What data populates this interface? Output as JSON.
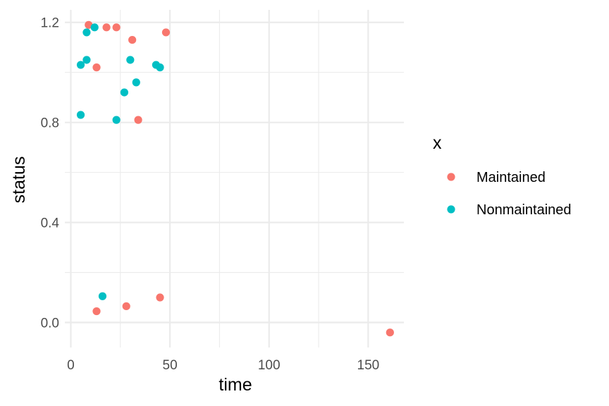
{
  "chart_data": {
    "type": "scatter",
    "title": "",
    "xlabel": "time",
    "ylabel": "status",
    "xlim": [
      -3,
      168
    ],
    "ylim": [
      -0.1,
      1.25
    ],
    "x_ticks": [
      0,
      50,
      100,
      150
    ],
    "x_tick_labels": [
      "0",
      "50",
      "100",
      "150"
    ],
    "x_minor_ticks": [
      25,
      75,
      125
    ],
    "y_ticks": [
      0.0,
      0.4,
      0.8,
      1.2
    ],
    "y_tick_labels": [
      "0.0",
      "0.4",
      "0.8",
      "1.2"
    ],
    "y_minor_ticks": [
      0.2,
      0.6,
      1.0
    ],
    "grid": true,
    "legend": {
      "title": "x",
      "position": "right"
    },
    "series": [
      {
        "name": "Maintained",
        "color": "#F8766D",
        "points": [
          {
            "x": 9,
            "y": 1.19
          },
          {
            "x": 18,
            "y": 1.18
          },
          {
            "x": 23,
            "y": 1.18
          },
          {
            "x": 48,
            "y": 1.16
          },
          {
            "x": 31,
            "y": 1.13
          },
          {
            "x": 13,
            "y": 1.02
          },
          {
            "x": 34,
            "y": 0.81
          },
          {
            "x": 45,
            "y": 0.1
          },
          {
            "x": 28,
            "y": 0.065
          },
          {
            "x": 13,
            "y": 0.045
          },
          {
            "x": 161,
            "y": -0.04
          }
        ]
      },
      {
        "name": "Nonmaintained",
        "color": "#00BFC4",
        "points": [
          {
            "x": 12,
            "y": 1.18
          },
          {
            "x": 8,
            "y": 1.16
          },
          {
            "x": 8,
            "y": 1.05
          },
          {
            "x": 5,
            "y": 1.03
          },
          {
            "x": 30,
            "y": 1.05
          },
          {
            "x": 43,
            "y": 1.03
          },
          {
            "x": 45,
            "y": 1.02
          },
          {
            "x": 33,
            "y": 0.96
          },
          {
            "x": 27,
            "y": 0.92
          },
          {
            "x": 5,
            "y": 0.83
          },
          {
            "x": 23,
            "y": 0.81
          },
          {
            "x": 16,
            "y": 0.105
          }
        ]
      }
    ]
  }
}
